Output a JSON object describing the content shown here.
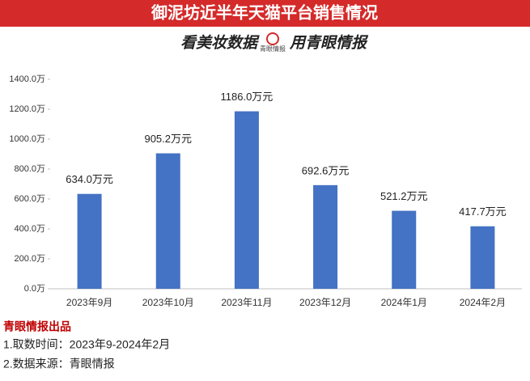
{
  "chart_data": {
    "type": "bar",
    "title": "御泥坊近半年天猫平台销售情况",
    "subtitle_left": "看美妆数据",
    "logo_text": "青眼情报",
    "subtitle_right": "用青眼情报",
    "categories": [
      "2023年9月",
      "2023年10月",
      "2023年11月",
      "2023年12月",
      "2024年1月",
      "2024年2月"
    ],
    "values": [
      634.0,
      905.2,
      1186.0,
      692.6,
      521.2,
      417.7
    ],
    "value_labels": [
      "634.0万元",
      "905.2万元",
      "1186.0万元",
      "692.6万元",
      "521.2万元",
      "417.7万元"
    ],
    "color": "#4472c4",
    "ylim": [
      0,
      1400
    ],
    "yticks": [
      {
        "value": 0,
        "label": "0.0万"
      },
      {
        "value": 200,
        "label": "200.0万"
      },
      {
        "value": 400,
        "label": "400.0万"
      },
      {
        "value": 600,
        "label": "600.0万"
      },
      {
        "value": 800,
        "label": "800.0万"
      },
      {
        "value": 1000,
        "label": "1000.0万"
      },
      {
        "value": 1200,
        "label": "1200.0万"
      },
      {
        "value": 1400,
        "label": "1400.0万"
      }
    ],
    "grid": false,
    "footer": {
      "credit": "青眼情报出品",
      "lines": [
        "1.取数时间：2023年9-2024年2月",
        "2.数据来源：青眼情报"
      ]
    }
  }
}
